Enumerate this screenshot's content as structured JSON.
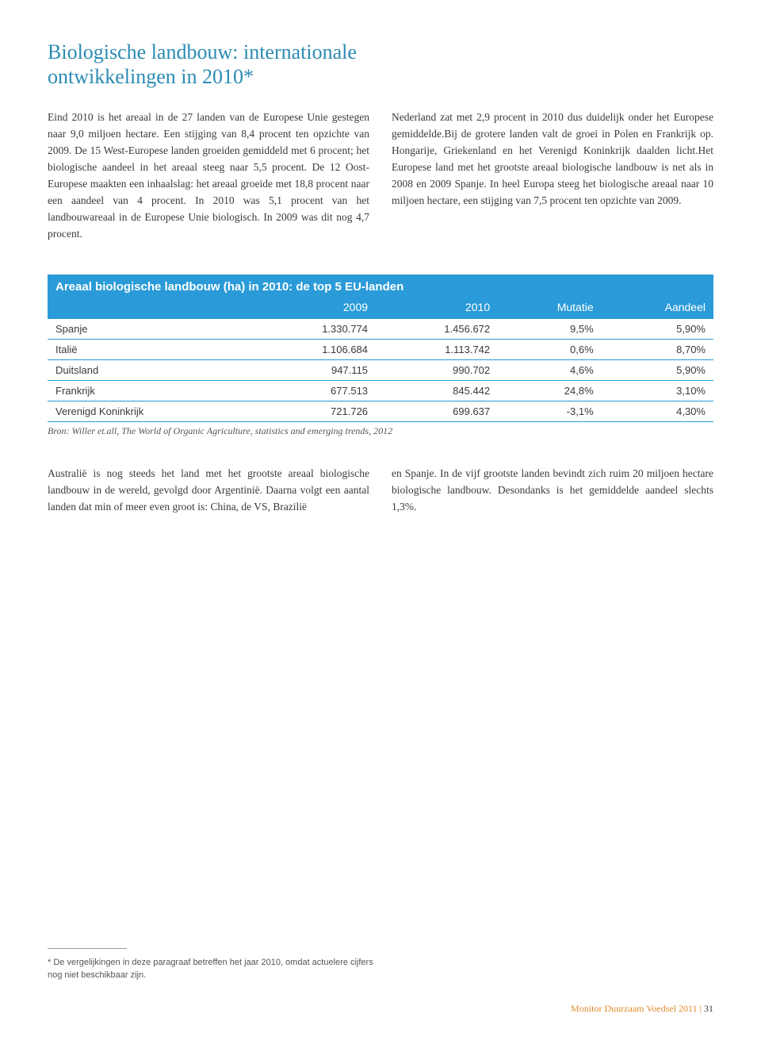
{
  "title": "Biologische landbouw: internationale ontwikkelingen in 2010*",
  "para1": "Eind 2010 is het areaal in de 27 landen van de Europese Unie gestegen naar 9,0 miljoen hectare. Een stijging van 8,4 procent ten opzichte van 2009. De 15 West-Europese landen groeiden gemiddeld met 6 procent; het biologische aandeel in het areaal steeg naar 5,5 procent. De 12 Oost-Europese maakten een inhaalslag: het areaal groeide met 18,8 procent naar een aandeel van 4 procent. In 2010 was 5,1 procent van het landbouwareaal in de Europese Unie biologisch. In 2009 was dit nog 4,7 procent.",
  "para2": "Nederland zat met 2,9 procent in 2010 dus duidelijk onder het Europese gemiddelde.Bij de grotere landen valt de groei in Polen en Frankrijk op. Hongarije, Griekenland en het Verenigd Koninkrijk daalden licht.Het Europese land met het grootste areaal biologische landbouw is net als in 2008 en 2009 Spanje. In heel Europa steeg het biologische areaal naar 10 miljoen hectare, een stijging van 7,5 procent ten opzichte van 2009.",
  "table": {
    "title": "Areaal biologische landbouw (ha) in 2010: de top 5 EU-landen",
    "columns": [
      "",
      "2009",
      "2010",
      "Mutatie",
      "Aandeel"
    ],
    "rows": [
      [
        "Spanje",
        "1.330.774",
        "1.456.672",
        "9,5%",
        "5,90%"
      ],
      [
        "Italië",
        "1.106.684",
        "1.113.742",
        "0,6%",
        "8,70%"
      ],
      [
        "Duitsland",
        "947.115",
        "990.702",
        "4,6%",
        "5,90%"
      ],
      [
        "Frankrijk",
        "677.513",
        "845.442",
        "24,8%",
        "3,10%"
      ],
      [
        "Verenigd Koninkrijk",
        "721.726",
        "699.637",
        "-3,1%",
        "4,30%"
      ]
    ],
    "colors": {
      "header_bg": "#2a9bd8",
      "header_text": "#ffffff",
      "row_border": "#2a9bd8",
      "text": "#3a3a3a"
    }
  },
  "source": "Bron: Willer et.all, The World of Organic Agriculture, statistics and emerging trends, 2012",
  "para3": "Australië is nog steeds het land met het grootste areaal biologische landbouw in de wereld, gevolgd door Argentinië. Daarna volgt een aantal landen dat min of meer even groot is: China, de VS, Brazilië",
  "para4": "en Spanje. In de vijf grootste landen bevindt zich ruim 20 miljoen hectare biologische landbouw. Desondanks is het gemiddelde aandeel slechts 1,3%.",
  "footnote": "* De vergelijkingen in deze paragraaf betreffen het jaar 2010, omdat actuelere cijfers nog niet beschikbaar zijn.",
  "footer_text": "Monitor Duurzaam Voedsel 2011",
  "footer_page": "31"
}
